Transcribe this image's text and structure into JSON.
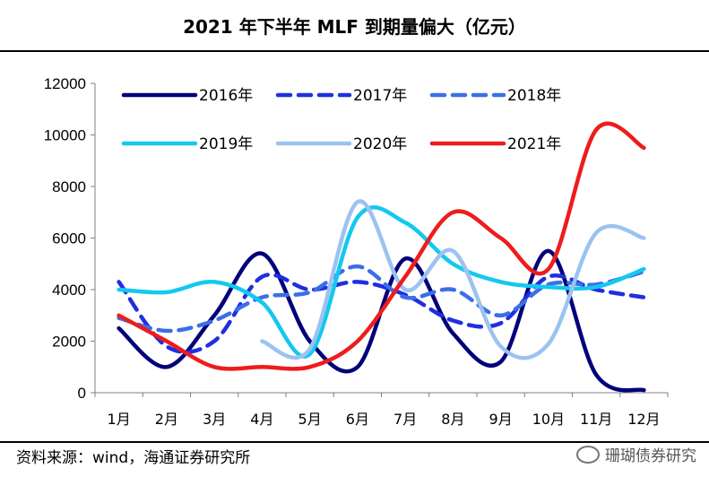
{
  "chart_data": {
    "type": "line",
    "title": "2021 年下半年 MLF 到期量偏大（亿元）",
    "categories": [
      "1月",
      "2月",
      "3月",
      "4月",
      "5月",
      "6月",
      "7月",
      "8月",
      "9月",
      "10月",
      "11月",
      "12月"
    ],
    "ylim": [
      0,
      12000
    ],
    "yticks": [
      0,
      2000,
      4000,
      6000,
      8000,
      10000,
      12000
    ],
    "ytick_labels": [
      "0",
      "2000",
      "4000",
      "6000",
      "8000",
      "10000",
      "12000"
    ],
    "xlabel": "",
    "ylabel": "",
    "legend_position": "top-left inside plot",
    "series": [
      {
        "name": "2016年",
        "color": "#00007a",
        "dash": "solid",
        "values": [
          2500,
          1000,
          3000,
          5400,
          2000,
          1000,
          5200,
          2300,
          1200,
          5500,
          700,
          100
        ]
      },
      {
        "name": "2017年",
        "color": "#1f2fe0",
        "dash": "dashed",
        "values": [
          4300,
          1800,
          2000,
          4500,
          4000,
          4300,
          3800,
          2800,
          2700,
          4500,
          4000,
          3700
        ]
      },
      {
        "name": "2018年",
        "color": "#3b6fe6",
        "dash": "dashed",
        "values": [
          2900,
          2400,
          2800,
          3700,
          3900,
          4900,
          3700,
          4000,
          3000,
          4200,
          4200,
          4700
        ]
      },
      {
        "name": "2019年",
        "color": "#14c8ef",
        "dash": "solid",
        "values": [
          4000,
          3900,
          4300,
          3500,
          1500,
          6800,
          6600,
          5000,
          4300,
          4100,
          4100,
          4800
        ]
      },
      {
        "name": "2020年",
        "color": "#9cc3f0",
        "dash": "solid",
        "values": [
          null,
          null,
          null,
          2000,
          1700,
          7400,
          4000,
          5500,
          1800,
          1900,
          6200,
          6000
        ]
      },
      {
        "name": "2021年",
        "color": "#ee1c1c",
        "dash": "solid",
        "values": [
          3000,
          2000,
          1000,
          1000,
          1000,
          2000,
          4500,
          7000,
          6000,
          4800,
          10200,
          9500
        ]
      }
    ]
  },
  "source_text": "资料来源：wind，海通证券研究所",
  "watermark_text": "珊瑚债券研究"
}
